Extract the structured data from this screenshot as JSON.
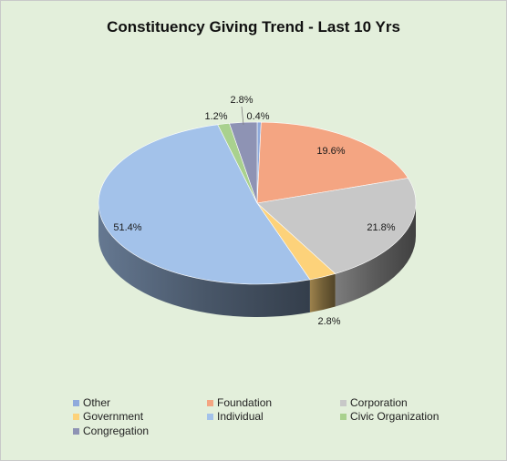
{
  "chart_data": {
    "type": "pie",
    "title": "Constituency Giving Trend - Last 10 Yrs",
    "slices": [
      {
        "name": "Other",
        "value": 0.4,
        "label": "0.4%",
        "color": "#8faadc"
      },
      {
        "name": "Foundation",
        "value": 19.6,
        "label": "19.6%",
        "color": "#f4a582"
      },
      {
        "name": "Corporation",
        "value": 21.8,
        "label": "21.8%",
        "color": "#c8c8c8"
      },
      {
        "name": "Government",
        "value": 2.8,
        "label": "2.8%",
        "color": "#fdd27a"
      },
      {
        "name": "Individual",
        "value": 51.4,
        "label": "51.4%",
        "color": "#a3c2ea"
      },
      {
        "name": "Civic Organization",
        "value": 1.2,
        "label": "1.2%",
        "color": "#a9d18e"
      },
      {
        "name": "Congregation",
        "value": 2.8,
        "label": "2.8%",
        "color": "#8e93b4"
      }
    ],
    "legend_position": "bottom"
  }
}
